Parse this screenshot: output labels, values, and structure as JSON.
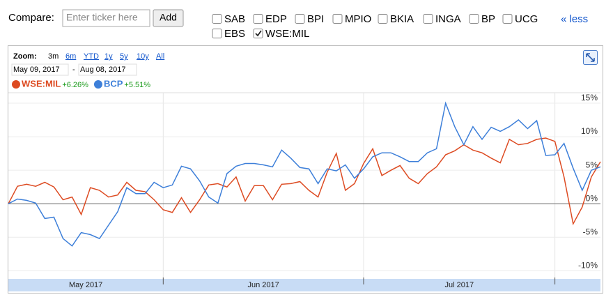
{
  "compare": {
    "label": "Compare:",
    "placeholder": "Enter ticker here",
    "button": "Add",
    "less_link": "« less",
    "tickers": [
      {
        "label": "SAB",
        "checked": false
      },
      {
        "label": "EDP",
        "checked": false
      },
      {
        "label": "BPI",
        "checked": false
      },
      {
        "label": "MPIO",
        "checked": false
      },
      {
        "label": "BKIA",
        "checked": false
      },
      {
        "label": "INGA",
        "checked": false
      },
      {
        "label": "BP",
        "checked": false
      },
      {
        "label": "UCG",
        "checked": false
      },
      {
        "label": "EBS",
        "checked": false
      },
      {
        "label": "WSE:MIL",
        "checked": true
      }
    ]
  },
  "zoom": {
    "label": "Zoom:",
    "options": [
      "3m",
      "6m",
      "YTD",
      "1y",
      "5y",
      "10y",
      "All"
    ],
    "selected": "3m"
  },
  "date_range": {
    "start": "May 09, 2017",
    "separator": "-",
    "end": "Aug 08, 2017"
  },
  "chart_data": {
    "type": "line",
    "series": [
      {
        "name": "WSE:MIL",
        "change": "+6.26%",
        "color": "#dd4b22",
        "values": [
          0,
          2.6,
          2.9,
          2.6,
          3.2,
          2.5,
          0.6,
          1.0,
          -1.6,
          2.4,
          2.0,
          1.0,
          1.3,
          3.2,
          2.0,
          1.8,
          0.6,
          -0.9,
          -1.3,
          0.9,
          -1.3,
          0.6,
          2.8,
          3.0,
          2.5,
          4.0,
          0.4,
          2.7,
          2.7,
          0.6,
          2.9,
          3.0,
          3.3,
          2.0,
          1.0,
          4.7,
          7.5,
          2.0,
          3.0,
          6.0,
          8.2,
          4.2,
          5.0,
          5.7,
          3.8,
          3.0,
          4.5,
          5.5,
          7.3,
          7.9,
          8.8,
          8.0,
          7.6,
          6.8,
          6.1,
          9.6,
          8.8,
          9.0,
          9.6,
          9.8,
          9.3,
          4.0,
          -3.0,
          -0.5,
          4.0,
          6.26
        ]
      },
      {
        "name": "BCP",
        "change": "+5.51%",
        "color": "#3d7fd9",
        "values": [
          0,
          0.7,
          0.5,
          0.1,
          -2.2,
          -2.0,
          -5.2,
          -6.3,
          -4.3,
          -4.6,
          -5.2,
          -3.2,
          -1.2,
          2.4,
          1.5,
          1.5,
          3.2,
          2.4,
          2.8,
          5.6,
          5.2,
          3.4,
          1.0,
          0.1,
          4.5,
          5.6,
          6.0,
          6.0,
          5.8,
          5.5,
          8.0,
          6.8,
          5.4,
          5.2,
          3.0,
          5.2,
          4.9,
          5.8,
          3.8,
          5.2,
          7.0,
          7.6,
          7.6,
          7.0,
          6.3,
          6.3,
          7.6,
          8.2,
          15.0,
          11.5,
          8.8,
          11.5,
          9.6,
          11.4,
          10.8,
          11.5,
          12.5,
          11.2,
          12.4,
          7.2,
          7.3,
          9.0,
          5.3,
          2.0,
          5.0,
          5.51
        ]
      }
    ],
    "xlim": [
      0,
      65
    ],
    "xticks": [
      17,
      39,
      60
    ],
    "month_labels": [
      "May 2017",
      "Jun 2017",
      "Jul 2017"
    ],
    "ylim": [
      -11,
      16.56
    ],
    "yticks": [
      {
        "value": 15,
        "label": "15%"
      },
      {
        "value": 10,
        "label": "10%"
      },
      {
        "value": 5,
        "label": "5%"
      },
      {
        "value": 0,
        "label": "0%"
      },
      {
        "value": -5,
        "label": "-5%"
      },
      {
        "value": -10,
        "label": "-10%"
      }
    ],
    "grid": true
  }
}
